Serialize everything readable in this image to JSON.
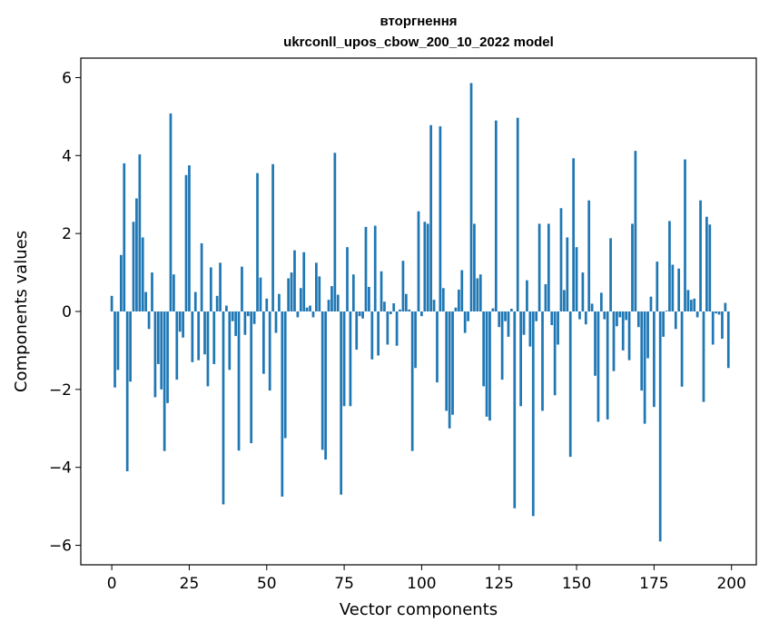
{
  "chart_data": {
    "type": "bar",
    "title": "вторгнення",
    "subtitle": "ukrconll_upos_cbow_200_10_2022 model",
    "xlabel": "Vector components",
    "ylabel": "Components values",
    "xlim": [
      -10,
      208
    ],
    "ylim": [
      -6.5,
      6.5
    ],
    "xticks": [
      0,
      25,
      50,
      75,
      100,
      125,
      150,
      175,
      200
    ],
    "yticks": [
      -6,
      -4,
      -2,
      0,
      2,
      4,
      6
    ],
    "bar_color": "#1f77b4",
    "grid": false,
    "values": [
      0.4,
      -1.95,
      -1.5,
      1.45,
      3.8,
      -4.1,
      -1.8,
      2.3,
      2.9,
      4.03,
      1.9,
      0.5,
      -0.45,
      1.0,
      -2.2,
      -1.35,
      -2.0,
      -3.58,
      -2.35,
      5.08,
      0.95,
      -1.75,
      -0.52,
      -0.67,
      3.5,
      3.75,
      -1.3,
      0.5,
      -1.25,
      1.75,
      -1.1,
      -1.92,
      1.13,
      -1.35,
      0.4,
      1.25,
      -4.95,
      0.15,
      -1.5,
      -0.25,
      -0.63,
      -3.57,
      1.15,
      -0.6,
      -0.12,
      -3.38,
      -0.32,
      3.55,
      0.87,
      -1.6,
      0.33,
      -2.03,
      3.78,
      -0.55,
      0.45,
      -4.75,
      -3.25,
      0.85,
      1.0,
      1.57,
      -0.15,
      0.6,
      1.52,
      0.1,
      0.15,
      -0.15,
      1.25,
      0.9,
      -3.55,
      -3.8,
      0.3,
      0.65,
      4.07,
      0.43,
      -4.7,
      -2.43,
      1.65,
      -2.43,
      0.95,
      -0.98,
      -0.12,
      -0.18,
      2.17,
      0.63,
      -1.23,
      2.2,
      -1.13,
      1.03,
      0.25,
      -0.85,
      -0.07,
      0.21,
      -0.88,
      0.05,
      1.3,
      0.45,
      0.05,
      -3.58,
      -1.45,
      2.57,
      -0.12,
      2.3,
      2.25,
      4.78,
      0.3,
      -1.82,
      4.75,
      0.6,
      -2.55,
      -3.0,
      -2.65,
      0.1,
      0.56,
      1.06,
      -0.55,
      -0.25,
      5.86,
      2.25,
      0.85,
      0.95,
      -1.92,
      -2.7,
      -2.8,
      0.08,
      4.9,
      -0.4,
      -1.75,
      -0.25,
      -0.65,
      0.07,
      -5.05,
      4.97,
      -2.43,
      -0.6,
      0.8,
      -0.9,
      -5.25,
      -0.25,
      2.25,
      -2.55,
      0.7,
      2.25,
      -0.35,
      -2.15,
      -0.85,
      2.65,
      0.55,
      1.9,
      -3.73,
      3.93,
      1.65,
      -0.2,
      1.0,
      -0.33,
      2.85,
      0.2,
      -1.65,
      -2.83,
      0.48,
      -0.2,
      -2.77,
      1.88,
      -1.53,
      -0.38,
      -0.15,
      -1.0,
      -0.22,
      -1.25,
      2.25,
      4.12,
      -0.4,
      -2.03,
      -2.88,
      -1.2,
      0.38,
      -2.45,
      1.28,
      -5.9,
      -0.65,
      0.02,
      2.32,
      1.2,
      -0.45,
      1.1,
      -1.93,
      3.9,
      0.55,
      0.3,
      0.33,
      -0.15,
      2.85,
      -2.32,
      2.43,
      2.23,
      -0.85,
      -0.05,
      -0.08,
      -0.7,
      0.22,
      -1.45
    ]
  }
}
